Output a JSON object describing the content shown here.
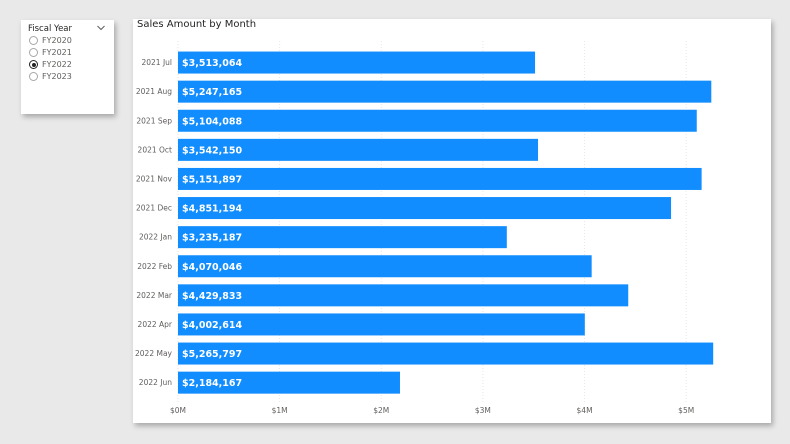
{
  "slicer": {
    "title": "Fiscal Year",
    "chevron_icon": "chevron-down-icon",
    "options": [
      {
        "label": "FY2020",
        "selected": false
      },
      {
        "label": "FY2021",
        "selected": false
      },
      {
        "label": "FY2022",
        "selected": true
      },
      {
        "label": "FY2023",
        "selected": false
      }
    ]
  },
  "chart_data": {
    "type": "bar",
    "orientation": "horizontal",
    "title": "Sales Amount by Month",
    "xlabel": "",
    "ylabel": "",
    "bar_color": "#118DFF",
    "grid": "vertical dashed",
    "categories": [
      "2021 Jul",
      "2021 Aug",
      "2021 Sep",
      "2021 Oct",
      "2021 Nov",
      "2021 Dec",
      "2022 Jan",
      "2022 Feb",
      "2022 Mar",
      "2022 Apr",
      "2022 May",
      "2022 Jun"
    ],
    "values": [
      3513064,
      5247165,
      5104088,
      3542150,
      5151897,
      4851194,
      3235187,
      4070046,
      4429833,
      4002614,
      5265797,
      2184167
    ],
    "data_labels": [
      "$3,513,064",
      "$5,247,165",
      "$5,104,088",
      "$3,542,150",
      "$5,151,897",
      "$4,851,194",
      "$3,235,187",
      "$4,070,046",
      "$4,429,833",
      "$4,002,614",
      "$5,265,797",
      "$2,184,167"
    ],
    "xlim": [
      0,
      5500000
    ],
    "ticks": [
      0,
      1000000,
      2000000,
      3000000,
      4000000,
      5000000
    ],
    "tick_labels": [
      "$0M",
      "$1M",
      "$2M",
      "$3M",
      "$4M",
      "$5M"
    ]
  }
}
